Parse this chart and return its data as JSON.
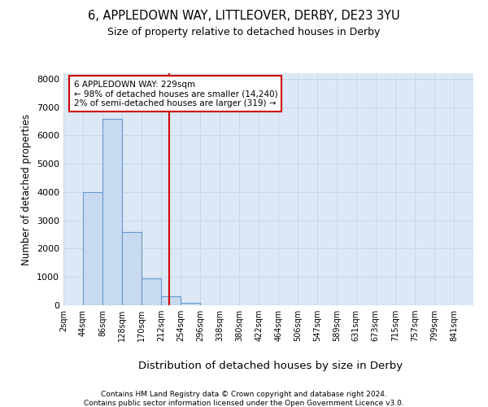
{
  "title1": "6, APPLEDOWN WAY, LITTLEOVER, DERBY, DE23 3YU",
  "title2": "Size of property relative to detached houses in Derby",
  "xlabel": "Distribution of detached houses by size in Derby",
  "ylabel": "Number of detached properties",
  "footer1": "Contains HM Land Registry data © Crown copyright and database right 2024.",
  "footer2": "Contains public sector information licensed under the Open Government Licence v3.0.",
  "annotation_line1": "6 APPLEDOWN WAY: 229sqm",
  "annotation_line2": "← 98% of detached houses are smaller (14,240)",
  "annotation_line3": "2% of semi-detached houses are larger (319) →",
  "property_size": 229,
  "bar_edges": [
    2,
    44,
    86,
    128,
    170,
    212,
    254,
    296,
    338,
    380,
    422,
    464,
    506,
    547,
    589,
    631,
    673,
    715,
    757,
    799,
    841
  ],
  "bar_heights": [
    0,
    4000,
    6600,
    2600,
    950,
    320,
    100,
    0,
    0,
    0,
    0,
    0,
    0,
    0,
    0,
    0,
    0,
    0,
    0,
    0
  ],
  "bar_color": "#c8daf0",
  "bar_edge_color": "#6699cc",
  "vline_color": "#cc0000",
  "annotation_box_edgecolor": "#cc0000",
  "grid_color": "#c8d8ea",
  "background_color": "#dce8f5",
  "ylim": [
    0,
    8200
  ],
  "yticks": [
    0,
    1000,
    2000,
    3000,
    4000,
    5000,
    6000,
    7000,
    8000
  ],
  "tick_labels": [
    "2sqm",
    "44sqm",
    "86sqm",
    "128sqm",
    "170sqm",
    "212sqm",
    "254sqm",
    "296sqm",
    "338sqm",
    "380sqm",
    "422sqm",
    "464sqm",
    "506sqm",
    "547sqm",
    "589sqm",
    "631sqm",
    "673sqm",
    "715sqm",
    "757sqm",
    "799sqm",
    "841sqm"
  ]
}
